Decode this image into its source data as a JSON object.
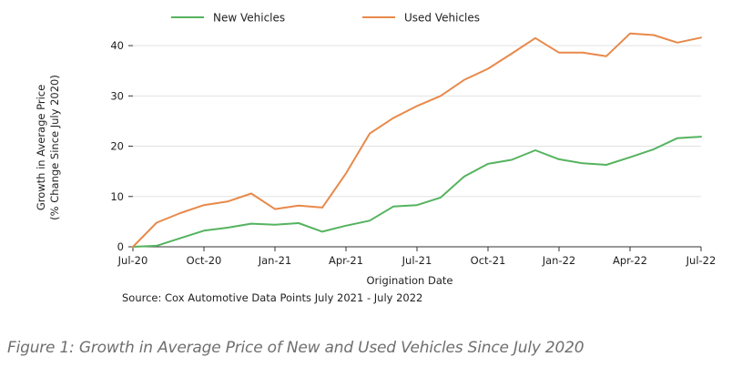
{
  "chart_data": {
    "type": "line",
    "xlabel": "Origination Date",
    "ylabel_lines": [
      "Growth in Average Price",
      "(% Change Since July 2020)"
    ],
    "ylim": [
      0,
      44
    ],
    "yticks": [
      0,
      10,
      20,
      30,
      40
    ],
    "grid": "horizontal",
    "legend_position": "top",
    "x_tick_labels": [
      "Jul-20",
      "Oct-20",
      "Jan-21",
      "Apr-21",
      "Jul-21",
      "Oct-21",
      "Jan-22",
      "Apr-22",
      "Jul-22"
    ],
    "x": [
      "Jul-20",
      "Aug-20",
      "Sep-20",
      "Oct-20",
      "Nov-20",
      "Dec-20",
      "Jan-21",
      "Feb-21",
      "Mar-21",
      "Apr-21",
      "May-21",
      "Jun-21",
      "Jul-21",
      "Aug-21",
      "Sep-21",
      "Oct-21",
      "Nov-21",
      "Dec-21",
      "Jan-22",
      "Feb-22",
      "Mar-22",
      "Apr-22",
      "May-22",
      "Jun-22",
      "Jul-22"
    ],
    "series": [
      {
        "name": "New Vehicles",
        "color": "#55b35f",
        "values": [
          0,
          0.2,
          1.7,
          3.2,
          3.8,
          4.6,
          4.4,
          4.7,
          3.0,
          4.2,
          5.2,
          8.0,
          8.3,
          9.8,
          14.0,
          16.5,
          17.3,
          19.2,
          17.4,
          16.6,
          16.3,
          17.8,
          19.4,
          21.6,
          21.9
        ]
      },
      {
        "name": "Used Vehicles",
        "color": "#e8894a",
        "values": [
          0,
          4.8,
          6.7,
          8.3,
          9.0,
          10.6,
          7.5,
          8.2,
          7.8,
          14.6,
          22.5,
          25.6,
          28.0,
          30.0,
          33.2,
          35.4,
          38.4,
          41.5,
          38.6,
          38.6,
          37.9,
          42.4,
          42.1,
          40.6,
          41.6
        ]
      }
    ]
  },
  "source_note": "Source: Cox Automotive Data Points July 2021 - July 2022",
  "caption": "Figure 1: Growth in Average Price of New and Used Vehicles Since July 2020"
}
